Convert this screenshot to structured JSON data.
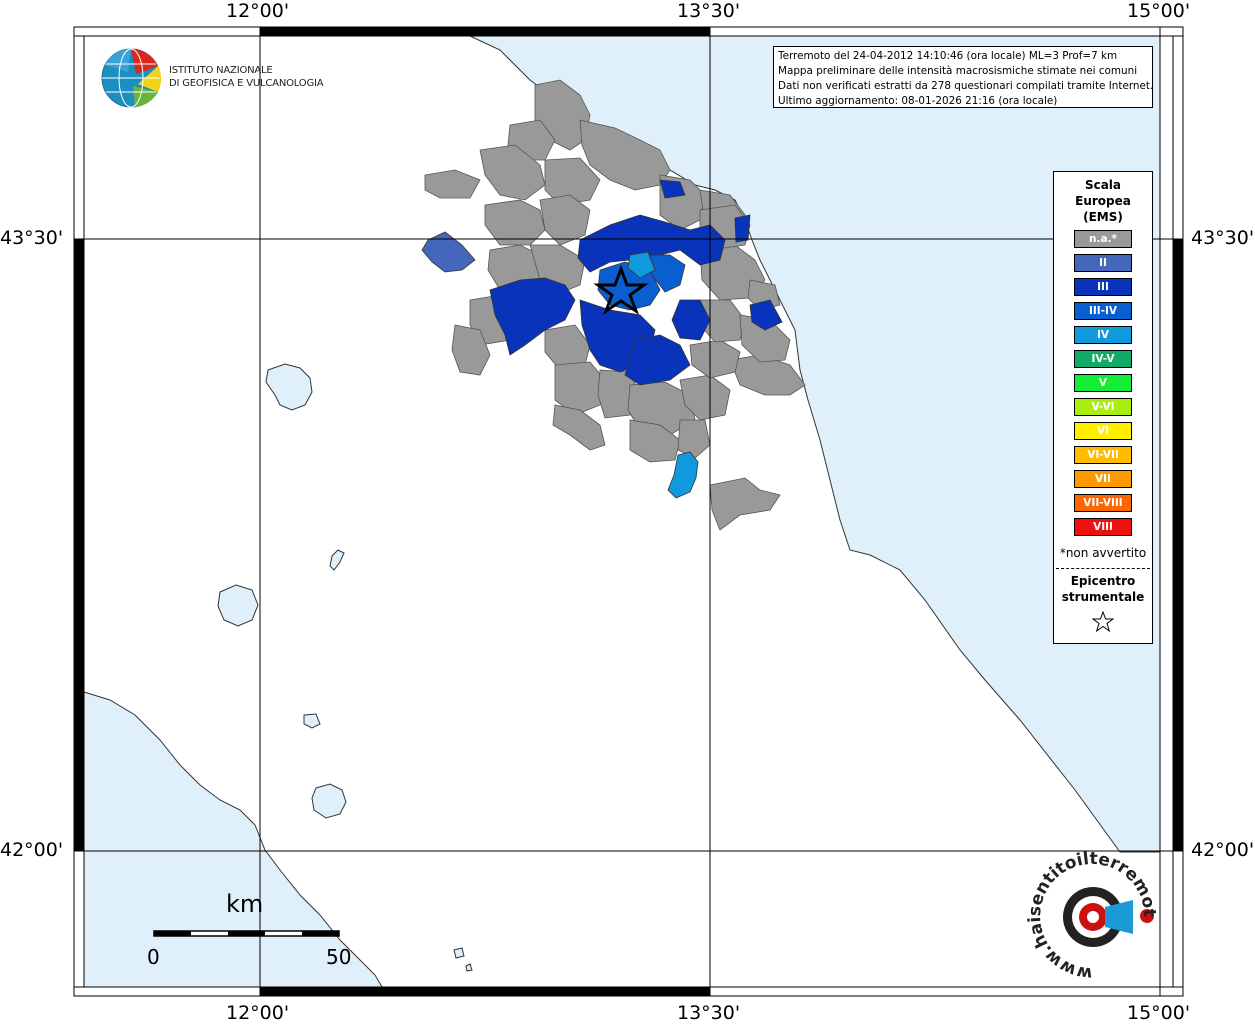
{
  "axes": {
    "lon_top": [
      "12°00'",
      "13°30'",
      "15°00'"
    ],
    "lon_bottom": [
      "12°00'",
      "13°30'",
      "15°00'"
    ],
    "lat_left": [
      "43°30'",
      "42°00'"
    ],
    "lat_right": [
      "43°30'",
      "42°00'"
    ]
  },
  "logo": {
    "line1": "ISTITUTO NAZIONALE",
    "line2": "DI GEOFISICA E VULCANOLOGIA",
    "icon": "ingv-globe-icon"
  },
  "info": {
    "line1": "Terremoto del 24-04-2012 14:10:46 (ora locale) ML=3 Prof=7 km",
    "line2": "Mappa preliminare delle intensità macrosismiche stimate nei comuni",
    "line3": "Dati non verificati estratti da 278 questionari compilati tramite Internet.",
    "line4": "Ultimo aggiornamento: 08-01-2026 21:16 (ora locale)"
  },
  "legend": {
    "title1": "Scala",
    "title2": "Europea",
    "title3": "(EMS)",
    "items": [
      {
        "label": "n.a.*",
        "color": "#999999"
      },
      {
        "label": "II",
        "color": "#4466bb"
      },
      {
        "label": "III",
        "color": "#0a33bb"
      },
      {
        "label": "III-IV",
        "color": "#0a5fd0"
      },
      {
        "label": "IV",
        "color": "#1199dd"
      },
      {
        "label": "IV-V",
        "color": "#11aa66"
      },
      {
        "label": "V",
        "color": "#11ee33"
      },
      {
        "label": "V-VI",
        "color": "#aaee11"
      },
      {
        "label": "VI",
        "color": "#ffee00"
      },
      {
        "label": "VI-VII",
        "color": "#ffbb00"
      },
      {
        "label": "VII",
        "color": "#ff9900"
      },
      {
        "label": "VII-VIII",
        "color": "#ff6600"
      },
      {
        "label": "VIII",
        "color": "#ee1111"
      }
    ],
    "note": "*non avvertito",
    "epicenter1": "Epicentro",
    "epicenter2": "strumentale",
    "epicenter_icon": "star-icon"
  },
  "scalebar": {
    "unit": "km",
    "min": "0",
    "max": "50"
  },
  "watermark": {
    "text": "www.haisentitoilterremoto.it",
    "icon": "hst-logo-icon"
  },
  "colors": {
    "sea": "#dff0fb",
    "land": "#ffffff",
    "na": "#999999",
    "ems_ii": "#4466bb",
    "ems_iii": "#0a33bb",
    "ems_iii_iv": "#0a5fd0",
    "ems_iv": "#1199dd"
  }
}
